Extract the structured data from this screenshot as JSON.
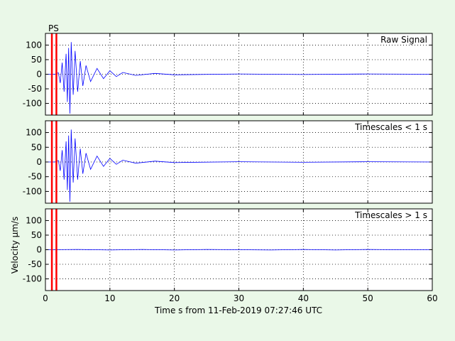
{
  "figure": {
    "background": "#eaf8e8",
    "signal_color": "#0000ff",
    "marker_color": "#ff0000",
    "phase_label": "PS",
    "xlabel": "Time s from 11-Feb-2019 07:27:46 UTC",
    "ylabel_prefix": "Velocity ",
    "ylabel_mu": "μ",
    "ylabel_unit": "m/s"
  },
  "chart_data": [
    {
      "type": "line",
      "title": "Raw Signal",
      "xlim": [
        0,
        60
      ],
      "ylim": [
        -140,
        140
      ],
      "xticks": [
        0,
        10,
        20,
        30,
        40,
        50,
        60
      ],
      "yticks": [
        -100,
        -50,
        0,
        50,
        100
      ],
      "grid": true,
      "phase_markers": [
        1.0,
        1.7
      ],
      "series": [
        {
          "x": [
            0,
            1.5,
            2.0,
            2.3,
            2.6,
            2.9,
            3.2,
            3.4,
            3.6,
            3.8,
            4.0,
            4.3,
            4.6,
            5.0,
            5.4,
            5.8,
            6.3,
            7.0,
            8.0,
            9.0,
            10.0,
            11.0,
            12.0,
            14.0,
            17.0,
            20.0,
            30.0,
            40.0,
            50.0,
            60.0
          ],
          "y": [
            0,
            0,
            5,
            -30,
            40,
            -60,
            70,
            -95,
            90,
            -135,
            110,
            -70,
            80,
            -60,
            45,
            -40,
            30,
            -25,
            20,
            -15,
            12,
            -8,
            6,
            -4,
            3,
            -2,
            1,
            -1,
            1,
            0
          ]
        }
      ]
    },
    {
      "type": "line",
      "title": "Timescales < 1 s",
      "xlim": [
        0,
        60
      ],
      "ylim": [
        -140,
        140
      ],
      "xticks": [
        0,
        10,
        20,
        30,
        40,
        50,
        60
      ],
      "yticks": [
        -100,
        -50,
        0,
        50,
        100
      ],
      "grid": true,
      "phase_markers": [
        1.0,
        1.7
      ],
      "series": [
        {
          "x": [
            0,
            1.5,
            2.0,
            2.3,
            2.6,
            2.9,
            3.2,
            3.4,
            3.6,
            3.8,
            4.0,
            4.3,
            4.6,
            5.0,
            5.4,
            5.8,
            6.3,
            7.0,
            8.0,
            9.0,
            10.0,
            11.0,
            12.0,
            14.0,
            17.0,
            20.0,
            30.0,
            40.0,
            50.0,
            60.0
          ],
          "y": [
            0,
            0,
            5,
            -30,
            40,
            -60,
            70,
            -95,
            90,
            -135,
            110,
            -70,
            80,
            -60,
            45,
            -40,
            30,
            -25,
            20,
            -15,
            12,
            -8,
            6,
            -4,
            3,
            -2,
            1,
            -1,
            1,
            0
          ]
        }
      ]
    },
    {
      "type": "line",
      "title": "Timescales > 1 s",
      "xlim": [
        0,
        60
      ],
      "ylim": [
        -140,
        140
      ],
      "xticks": [
        0,
        10,
        20,
        30,
        40,
        50,
        60
      ],
      "yticks": [
        -100,
        -50,
        0,
        50,
        100
      ],
      "grid": true,
      "phase_markers": [
        1.0,
        1.7
      ],
      "series": [
        {
          "x": [
            0,
            5,
            10,
            15,
            20,
            25,
            30,
            35,
            40,
            45,
            50,
            55,
            60
          ],
          "y": [
            0,
            1,
            -1,
            1,
            -1,
            1,
            0,
            -1,
            1,
            -1,
            1,
            0,
            0
          ]
        }
      ]
    }
  ]
}
